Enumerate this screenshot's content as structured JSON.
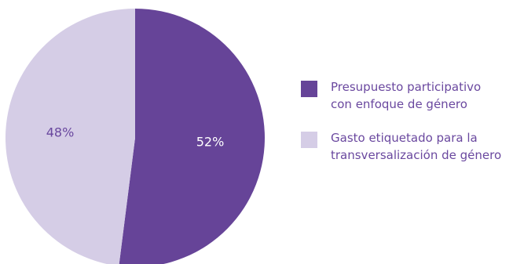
{
  "chart_data": {
    "type": "pie",
    "categories": [
      "Presupuesto participativo\ncon enfoque de género",
      "Gasto etiquetado para la\ntransversalización de género"
    ],
    "values": [
      52,
      48
    ],
    "value_labels": [
      "52%",
      "48%"
    ],
    "colors": [
      "#664498",
      "#d5cde6"
    ],
    "label_colors": [
      "#ffffff",
      "#6a489f"
    ],
    "start_angle_deg": 0,
    "direction": "clockwise",
    "legend_position": "right"
  }
}
